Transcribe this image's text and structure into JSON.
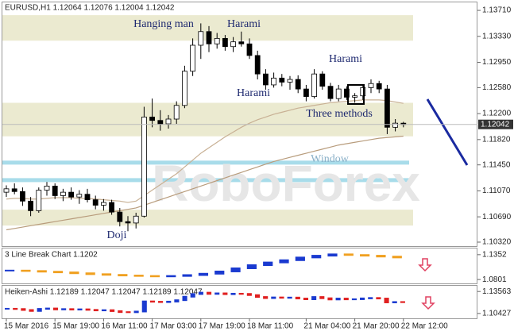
{
  "chart_data": {
    "type": "candlestick",
    "title": "EURUSD,H1  1.12064 1.12076 1.12004 1.12042",
    "ylim": [
      1.10262,
      1.13827
    ],
    "yticks": [
      {
        "value": 1.1371,
        "label": "1.13710"
      },
      {
        "value": 1.1333,
        "label": "1.13330"
      },
      {
        "value": 1.1295,
        "label": "1.12950"
      },
      {
        "value": 1.1258,
        "label": "1.12580"
      },
      {
        "value": 1.122,
        "label": "1.12200"
      },
      {
        "value": 1.1182,
        "label": "1.11820"
      },
      {
        "value": 1.1145,
        "label": "1.11450"
      },
      {
        "value": 1.1107,
        "label": "1.11070"
      },
      {
        "value": 1.1069,
        "label": "1.10690"
      },
      {
        "value": 1.1032,
        "label": "1.10320"
      }
    ],
    "current_price": {
      "value": 1.12042,
      "label": "1.12042"
    },
    "categories": [
      "15 Mar 2016",
      null,
      null,
      null,
      null,
      null,
      "15 Mar 19:00",
      null,
      null,
      null,
      null,
      null,
      "16 Mar 11:00",
      null,
      null,
      null,
      null,
      null,
      "17 Mar 03:00",
      null,
      null,
      null,
      null,
      null,
      "17 Mar 19:00",
      null,
      null,
      null,
      null,
      null,
      "18 Mar 11:00",
      null,
      null,
      null,
      null,
      null,
      null,
      "21 Mar 04:00",
      null,
      null,
      null,
      null,
      null,
      "21 Mar 20:00",
      null,
      null,
      null,
      null,
      null,
      "22 Mar 12:00"
    ],
    "open": [
      1.1105,
      1.111,
      1.1106,
      1.1092,
      1.1078,
      1.1108,
      1.1114,
      1.11,
      1.1105,
      1.1098,
      1.1102,
      1.1094,
      1.1086,
      1.109,
      1.1076,
      1.1062,
      1.106,
      1.107,
      1.1215,
      1.121,
      1.1205,
      1.1212,
      1.1232,
      1.1282,
      1.132,
      1.134,
      1.1322,
      1.133,
      1.1318,
      1.1325,
      1.1322,
      1.1305,
      1.1278,
      1.1262,
      1.1272,
      1.1266,
      1.127,
      1.1256,
      1.1245,
      1.1278,
      1.126,
      1.1242,
      1.1256,
      1.1244,
      1.1246,
      1.1258,
      1.1264,
      1.1256,
      1.12,
      1.1206
    ],
    "high": [
      1.1115,
      1.1118,
      1.1112,
      1.1098,
      1.1112,
      1.112,
      1.1118,
      1.111,
      1.1112,
      1.1108,
      1.111,
      1.11,
      1.1095,
      1.1094,
      1.1082,
      1.107,
      1.1075,
      1.123,
      1.1242,
      1.1225,
      1.1218,
      1.1238,
      1.129,
      1.133,
      1.1352,
      1.1348,
      1.1338,
      1.1335,
      1.1332,
      1.134,
      1.133,
      1.1312,
      1.1285,
      1.128,
      1.1278,
      1.1275,
      1.1276,
      1.1262,
      1.1285,
      1.1282,
      1.1265,
      1.1262,
      1.126,
      1.125,
      1.1262,
      1.127,
      1.1268,
      1.1262,
      1.1212,
      1.1208
    ],
    "low": [
      1.1098,
      1.1102,
      1.1085,
      1.107,
      1.1075,
      1.11,
      1.1095,
      1.1092,
      1.1094,
      1.1088,
      1.109,
      1.108,
      1.1078,
      1.1072,
      1.1055,
      1.1048,
      1.1052,
      1.1068,
      1.12,
      1.1195,
      1.1198,
      1.1205,
      1.1228,
      1.1275,
      1.13,
      1.131,
      1.1315,
      1.1312,
      1.131,
      1.1318,
      1.13,
      1.127,
      1.1255,
      1.1258,
      1.126,
      1.1255,
      1.125,
      1.1238,
      1.1242,
      1.1255,
      1.1238,
      1.1238,
      1.124,
      1.1236,
      1.124,
      1.125,
      1.125,
      1.119,
      1.1194,
      1.12
    ],
    "close": [
      1.111,
      1.1106,
      1.1092,
      1.1078,
      1.1108,
      1.1114,
      1.11,
      1.1105,
      1.1098,
      1.1102,
      1.1094,
      1.1086,
      1.109,
      1.1076,
      1.1062,
      1.106,
      1.107,
      1.1215,
      1.121,
      1.1205,
      1.1212,
      1.1232,
      1.1282,
      1.132,
      1.134,
      1.1322,
      1.133,
      1.1318,
      1.1325,
      1.1322,
      1.1305,
      1.1278,
      1.1262,
      1.1272,
      1.1266,
      1.127,
      1.1256,
      1.1245,
      1.1278,
      1.126,
      1.1242,
      1.1256,
      1.1244,
      1.1246,
      1.1258,
      1.1264,
      1.1256,
      1.12,
      1.1206,
      1.1204
    ],
    "moving_averages": [
      {
        "color": "#b89c7c",
        "values": [
          1.105,
          1.1052,
          1.1054,
          1.1056,
          1.1058,
          1.106,
          1.1062,
          1.1064,
          1.1066,
          1.1068,
          1.107,
          1.1072,
          1.1074,
          1.1076,
          1.1078,
          1.108,
          1.1082,
          1.1086,
          1.109,
          1.1094,
          1.1098,
          1.1102,
          1.1106,
          1.111,
          1.1114,
          1.1118,
          1.1122,
          1.1126,
          1.113,
          1.1134,
          1.1138,
          1.1142,
          1.1146,
          1.115,
          1.1153,
          1.1156,
          1.1159,
          1.1162,
          1.1165,
          1.1168,
          1.1171,
          1.1174,
          1.1176,
          1.1178,
          1.118,
          1.1182,
          1.1184,
          1.1185,
          1.1186,
          1.1187
        ]
      },
      {
        "color": "#c8b094",
        "values": [
          1.1095,
          1.1096,
          1.1096,
          1.1095,
          1.1095,
          1.1096,
          1.1097,
          1.1097,
          1.1097,
          1.1096,
          1.1096,
          1.1095,
          1.1094,
          1.1093,
          1.1092,
          1.109,
          1.1092,
          1.11,
          1.1108,
          1.1116,
          1.1124,
          1.1132,
          1.1142,
          1.1152,
          1.1162,
          1.117,
          1.1178,
          1.1186,
          1.1193,
          1.12,
          1.1206,
          1.1211,
          1.1215,
          1.1219,
          1.1222,
          1.1225,
          1.1228,
          1.123,
          1.1232,
          1.1234,
          1.1236,
          1.1237,
          1.1238,
          1.1239,
          1.124,
          1.124,
          1.124,
          1.1239,
          1.1237,
          1.1235
        ]
      }
    ],
    "zones": [
      [
        1.1364,
        1.13267
      ],
      [
        1.12358,
        1.11868
      ],
      [
        1.10795,
        1.10562
      ]
    ],
    "levels": [
      1.11483,
      1.11227
    ],
    "annotations": [
      "Hanging man",
      "Harami",
      "Harami",
      "Harami",
      "Three methods",
      "Window",
      "Doji"
    ],
    "watermark": "RoboForex",
    "panels": [
      {
        "title": "3 Line Break Chart 1.1202",
        "ylim": [
          1.0715,
          1.149
        ],
        "yticks": [
          1.1352,
          1.0801
        ],
        "values": [
          1.1,
          1.099,
          1.0975,
          1.096,
          1.094,
          1.092,
          1.0905,
          1.089,
          1.088,
          1.087,
          1.088,
          1.09,
          1.093,
          1.098,
          1.105,
          1.112,
          1.118,
          1.123,
          1.129,
          1.133,
          1.136,
          1.1345,
          1.133,
          1.131,
          1.129
        ]
      },
      {
        "title": "Heiken-Ashi 1.12189 1.12047 1.12047 1.12189 1.12047",
        "ylim": [
          1.0973,
          1.1438
        ],
        "yticks": [
          1.13563,
          1.10427
        ],
        "values": [
          1.111,
          1.1106,
          1.1092,
          1.1078,
          1.1108,
          1.1114,
          1.11,
          1.1105,
          1.1098,
          1.1102,
          1.1094,
          1.1086,
          1.109,
          1.1076,
          1.1062,
          1.106,
          1.107,
          1.1215,
          1.121,
          1.1205,
          1.1212,
          1.1232,
          1.1282,
          1.132,
          1.134,
          1.1322,
          1.133,
          1.1318,
          1.1325,
          1.1322,
          1.1305,
          1.1278,
          1.1262,
          1.1272,
          1.1266,
          1.127,
          1.1256,
          1.1245,
          1.1278,
          1.126,
          1.1242,
          1.1256,
          1.1244,
          1.1246,
          1.1258,
          1.1264,
          1.1256,
          1.12,
          1.1206,
          1.1204
        ]
      }
    ]
  }
}
